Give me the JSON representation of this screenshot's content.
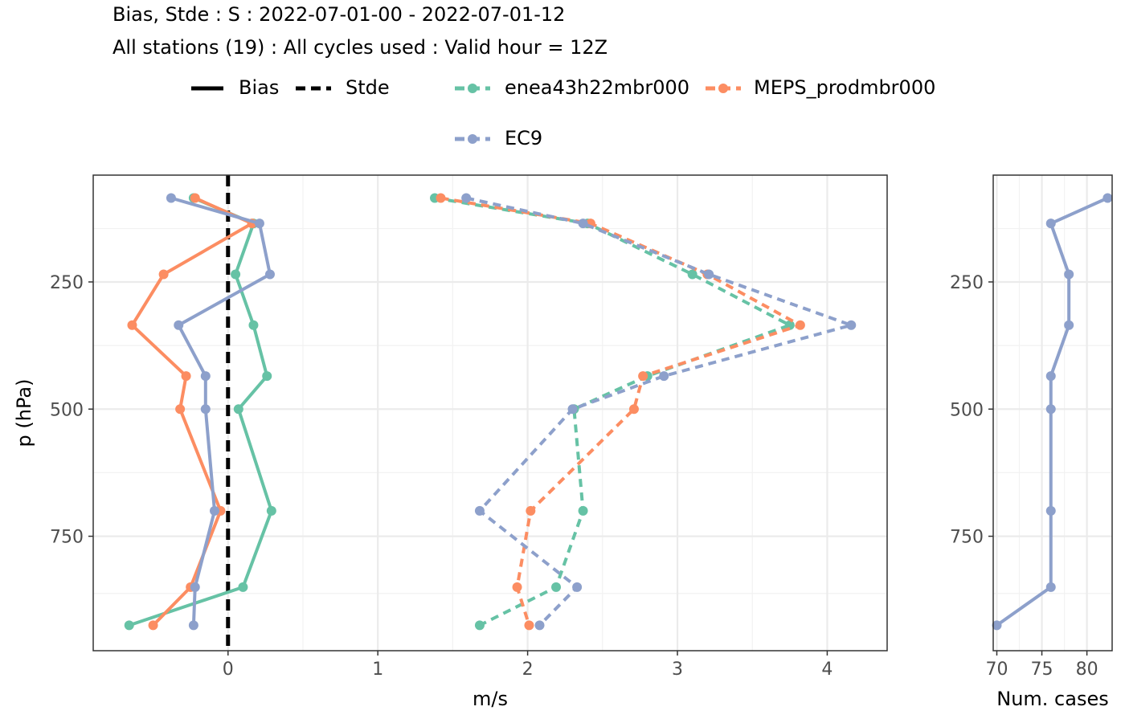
{
  "title": "Bias, Stde : S : 2022-07-01-00 - 2022-07-01-12",
  "subtitle": "All stations (19) : All cycles used : Valid hour = 12Z",
  "legend": {
    "linetypes": [
      {
        "label": "Bias",
        "dash": "solid"
      },
      {
        "label": "Stde",
        "dash": "dashed"
      }
    ],
    "models": [
      {
        "label": "enea43h22mbr000",
        "color": "#66c2a5"
      },
      {
        "label": "MEPS_prodmbr000",
        "color": "#fc8d62"
      },
      {
        "label": "EC9",
        "color": "#8da0cb"
      }
    ]
  },
  "chart_data": [
    {
      "type": "line",
      "xlabel": "m/s",
      "ylabel": "p (hPa)",
      "xlim": [
        -0.9,
        4.4
      ],
      "ylim": [
        975,
        40
      ],
      "y_scale": "reversed",
      "x_ticks": [
        0,
        1,
        2,
        3,
        4
      ],
      "x_tick_labels": [
        "0",
        "1",
        "2",
        "3",
        "4"
      ],
      "y_ticks": [
        250,
        500,
        750
      ],
      "y_tick_labels": [
        "250",
        "500",
        "750"
      ],
      "grid": true,
      "reference_line": {
        "x": 0,
        "style": "dashed",
        "color": "#000000"
      },
      "levels": [
        85,
        135,
        235,
        335,
        435,
        500,
        700,
        850,
        925
      ],
      "series": [
        {
          "name": "enea43h22mbr000",
          "metric": "Bias",
          "color": "#66c2a5",
          "points": [
            [
              -0.23,
              85
            ],
            [
              0.17,
              135
            ],
            [
              0.05,
              235
            ],
            [
              0.17,
              335
            ],
            [
              0.26,
              435
            ],
            [
              0.07,
              500
            ],
            [
              0.29,
              700
            ],
            [
              0.1,
              850
            ],
            [
              -0.66,
              925
            ]
          ]
        },
        {
          "name": "MEPS_prodmbr000",
          "metric": "Bias",
          "color": "#fc8d62",
          "points": [
            [
              -0.22,
              85
            ],
            [
              0.16,
              135
            ],
            [
              -0.43,
              235
            ],
            [
              -0.64,
              335
            ],
            [
              -0.28,
              435
            ],
            [
              -0.32,
              500
            ],
            [
              -0.05,
              700
            ],
            [
              -0.25,
              850
            ],
            [
              -0.5,
              925
            ]
          ]
        },
        {
          "name": "EC9",
          "metric": "Bias",
          "color": "#8da0cb",
          "points": [
            [
              -0.38,
              85
            ],
            [
              0.21,
              135
            ],
            [
              0.28,
              235
            ],
            [
              -0.33,
              335
            ],
            [
              -0.15,
              435
            ],
            [
              -0.15,
              500
            ],
            [
              -0.09,
              700
            ],
            [
              -0.22,
              850
            ],
            [
              -0.23,
              925
            ]
          ]
        },
        {
          "name": "enea43h22mbr000",
          "metric": "Stde",
          "color": "#66c2a5",
          "points": [
            [
              1.38,
              85
            ],
            [
              2.4,
              135
            ],
            [
              3.1,
              235
            ],
            [
              3.75,
              335
            ],
            [
              2.8,
              435
            ],
            [
              2.31,
              500
            ],
            [
              2.37,
              700
            ],
            [
              2.19,
              850
            ],
            [
              1.68,
              925
            ]
          ]
        },
        {
          "name": "MEPS_prodmbr000",
          "metric": "Stde",
          "color": "#fc8d62",
          "points": [
            [
              1.42,
              85
            ],
            [
              2.42,
              135
            ],
            [
              3.2,
              235
            ],
            [
              3.82,
              335
            ],
            [
              2.77,
              435
            ],
            [
              2.71,
              500
            ],
            [
              2.02,
              700
            ],
            [
              1.93,
              850
            ],
            [
              2.01,
              925
            ]
          ]
        },
        {
          "name": "EC9",
          "metric": "Stde",
          "color": "#8da0cb",
          "points": [
            [
              1.59,
              85
            ],
            [
              2.37,
              135
            ],
            [
              3.21,
              235
            ],
            [
              4.16,
              335
            ],
            [
              2.91,
              435
            ],
            [
              2.3,
              500
            ],
            [
              1.68,
              700
            ],
            [
              2.33,
              850
            ],
            [
              2.08,
              925
            ]
          ]
        }
      ]
    },
    {
      "type": "line",
      "xlabel": "Num. cases",
      "ylabel": "",
      "xlim": [
        69.6,
        82.8
      ],
      "ylim": [
        975,
        40
      ],
      "y_scale": "reversed",
      "x_ticks": [
        70,
        75,
        80
      ],
      "x_tick_labels": [
        "70",
        "75",
        "80"
      ],
      "y_ticks": [
        250,
        500,
        750
      ],
      "y_tick_labels": [
        "250",
        "500",
        "750"
      ],
      "grid": true,
      "series": [
        {
          "name": "EC9",
          "color": "#8da0cb",
          "points": [
            [
              82.3,
              85
            ],
            [
              76.0,
              135
            ],
            [
              78.0,
              235
            ],
            [
              78.0,
              335
            ],
            [
              76.0,
              435
            ],
            [
              76.0,
              500
            ],
            [
              76.0,
              700
            ],
            [
              76.0,
              850
            ],
            [
              70.0,
              925
            ]
          ]
        }
      ]
    }
  ]
}
